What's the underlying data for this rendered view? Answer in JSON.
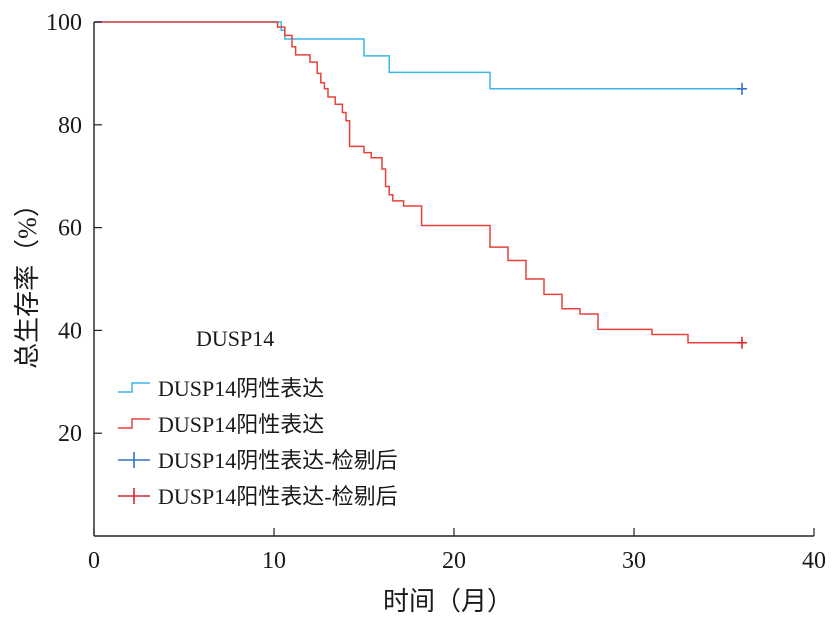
{
  "chart_data": {
    "type": "line",
    "subtype": "kaplan-meier",
    "title": "",
    "xlabel": "时间（月）",
    "ylabel": "总生存率（%）",
    "xlim": [
      0,
      40
    ],
    "ylim": [
      0,
      100
    ],
    "xticks": [
      0,
      10,
      20,
      30,
      40
    ],
    "yticks": [
      20,
      40,
      60,
      80,
      100
    ],
    "grid": false,
    "legend": {
      "title": "DUSP14",
      "placement": "lower-left",
      "entries": [
        {
          "label": "DUSP14阴性表达",
          "kind": "step",
          "color": "#3bb7e6"
        },
        {
          "label": "DUSP14阳性表达",
          "kind": "step",
          "color": "#e8413c"
        },
        {
          "label": "DUSP14阴性表达-检剔后",
          "kind": "censor",
          "color": "#2f72c0"
        },
        {
          "label": "DUSP14阳性表达-检剔后",
          "kind": "censor",
          "color": "#d9262b"
        }
      ]
    },
    "series": [
      {
        "name": "DUSP14阴性表达",
        "color": "#3bb7e6",
        "censor_color": "#2f72c0",
        "points": [
          [
            0,
            100
          ],
          [
            10.4,
            100
          ],
          [
            10.4,
            98.4
          ],
          [
            10.6,
            98.4
          ],
          [
            10.6,
            96.7
          ],
          [
            15,
            96.7
          ],
          [
            15,
            93.4
          ],
          [
            16.4,
            93.4
          ],
          [
            16.4,
            90.2
          ],
          [
            22,
            90.2
          ],
          [
            22,
            87.0
          ],
          [
            36,
            87.0
          ]
        ],
        "censored": [
          [
            36,
            87.0
          ]
        ]
      },
      {
        "name": "DUSP14阳性表达",
        "color": "#e8413c",
        "censor_color": "#d9262b",
        "points": [
          [
            0,
            100
          ],
          [
            10.2,
            100
          ],
          [
            10.2,
            99.0
          ],
          [
            10.6,
            99.0
          ],
          [
            10.6,
            97.4
          ],
          [
            11,
            97.4
          ],
          [
            11,
            95.2
          ],
          [
            11.2,
            95.2
          ],
          [
            11.2,
            93.6
          ],
          [
            12,
            93.6
          ],
          [
            12,
            92.2
          ],
          [
            12.4,
            92.2
          ],
          [
            12.4,
            90.0
          ],
          [
            12.6,
            90.0
          ],
          [
            12.6,
            88.2
          ],
          [
            12.8,
            88.2
          ],
          [
            12.8,
            87.0
          ],
          [
            13,
            87.0
          ],
          [
            13,
            85.4
          ],
          [
            13.4,
            85.4
          ],
          [
            13.4,
            84.0
          ],
          [
            13.8,
            84.0
          ],
          [
            13.8,
            82.4
          ],
          [
            14,
            82.4
          ],
          [
            14,
            80.8
          ],
          [
            14.2,
            80.8
          ],
          [
            14.2,
            75.8
          ],
          [
            15,
            75.8
          ],
          [
            15,
            74.6
          ],
          [
            15.4,
            74.6
          ],
          [
            15.4,
            73.6
          ],
          [
            16,
            73.6
          ],
          [
            16,
            71.4
          ],
          [
            16.2,
            71.4
          ],
          [
            16.2,
            68.0
          ],
          [
            16.4,
            68.0
          ],
          [
            16.4,
            66.4
          ],
          [
            16.6,
            66.4
          ],
          [
            16.6,
            65.2
          ],
          [
            17.2,
            65.2
          ],
          [
            17.2,
            64.2
          ],
          [
            18.2,
            64.2
          ],
          [
            18.2,
            60.4
          ],
          [
            22,
            60.4
          ],
          [
            22,
            56.2
          ],
          [
            23,
            56.2
          ],
          [
            23,
            53.6
          ],
          [
            24,
            53.6
          ],
          [
            24,
            50.0
          ],
          [
            25,
            50.0
          ],
          [
            25,
            47.0
          ],
          [
            26,
            47.0
          ],
          [
            26,
            44.2
          ],
          [
            27,
            44.2
          ],
          [
            27,
            43.2
          ],
          [
            28,
            43.2
          ],
          [
            28,
            40.2
          ],
          [
            31,
            40.2
          ],
          [
            31,
            39.2
          ],
          [
            33,
            39.2
          ],
          [
            33,
            37.6
          ],
          [
            36,
            37.6
          ]
        ],
        "censored": [
          [
            36,
            37.6
          ]
        ]
      }
    ]
  }
}
